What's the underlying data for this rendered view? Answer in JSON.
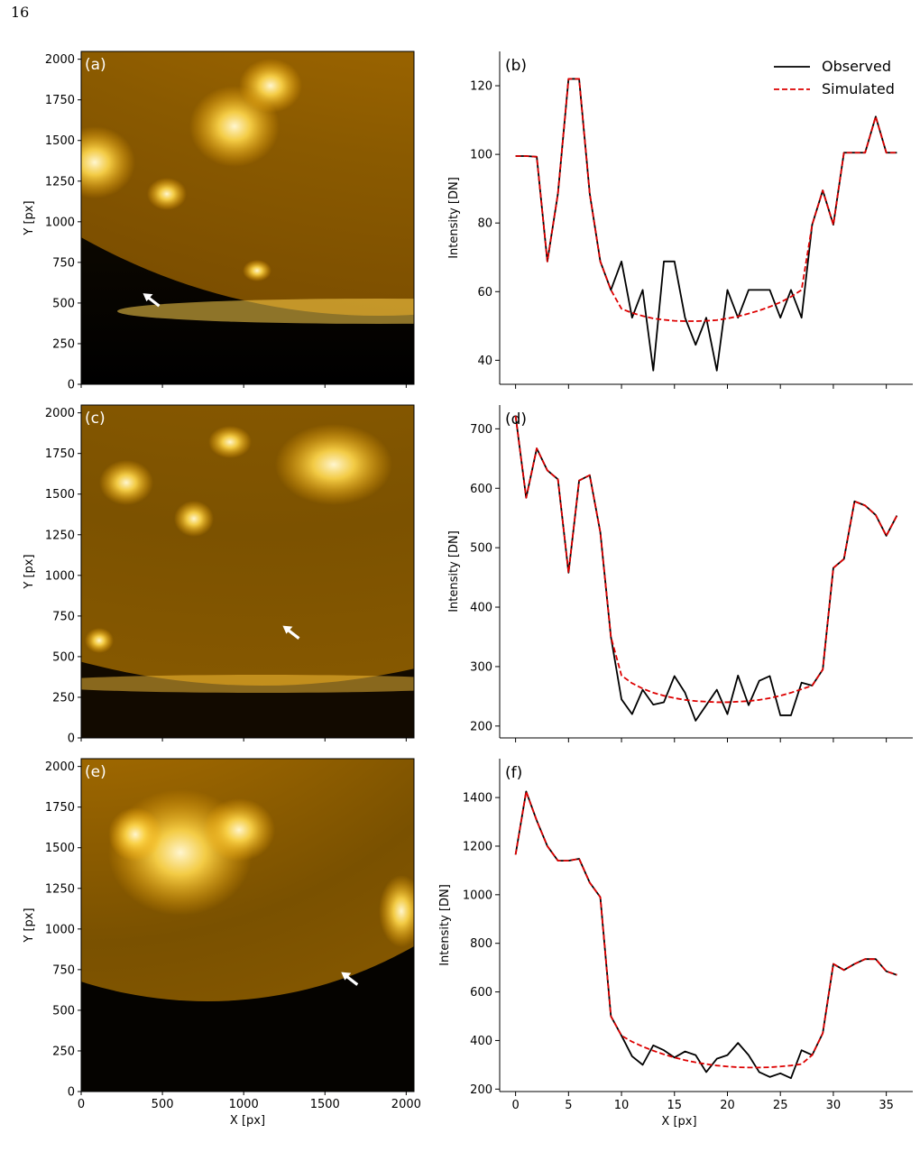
{
  "page_number": "16",
  "image_panels": [
    {
      "label": "(a)",
      "ylabel": "Y [px]",
      "xlabel": "",
      "ticks": [
        "0",
        "500",
        "1000",
        "1500",
        "2000"
      ],
      "arrow": [
        380,
        560
      ]
    },
    {
      "label": "(c)",
      "ylabel": "Y [px]",
      "xlabel": "",
      "ticks": [
        "0",
        "500",
        "1000",
        "1500",
        "2000"
      ],
      "arrow": [
        1240,
        690
      ]
    },
    {
      "label": "(e)",
      "ylabel": "Y [px]",
      "xlabel": "X [px]",
      "ticks": [
        "0",
        "500",
        "1000",
        "1500",
        "2000"
      ],
      "arrow": [
        1600,
        735
      ]
    }
  ],
  "colors": {
    "observed": "#000000",
    "simulated": "#dd0000",
    "sun_dark": "#3a2400",
    "sun_mid": "#b77a00",
    "sun_bright": "#ffcc33"
  },
  "chart_data": [
    {
      "type": "line",
      "label": "(b)",
      "xlabel": "",
      "ylabel": "Intensity [DN]",
      "xlim": [
        -1.5,
        37.5
      ],
      "ylim": [
        33,
        130
      ],
      "xticks": [
        0,
        5,
        10,
        15,
        20,
        25,
        30,
        35
      ],
      "yticks": [
        40,
        60,
        80,
        100,
        120
      ],
      "legend": "top-right",
      "x": [
        0,
        1,
        2,
        3,
        4,
        5,
        6,
        7,
        8,
        9,
        10,
        11,
        12,
        13,
        14,
        15,
        16,
        17,
        18,
        19,
        20,
        21,
        22,
        23,
        24,
        25,
        26,
        27,
        28,
        29,
        30,
        31,
        32,
        33,
        34,
        35,
        36
      ],
      "series": [
        {
          "name": "Observed",
          "style": "solid",
          "values": [
            99.5,
            99.5,
            99.3,
            68.8,
            88.6,
            122,
            122,
            88.6,
            68.8,
            60.5,
            68.8,
            52.4,
            60.5,
            37,
            68.8,
            68.8,
            52.4,
            44.5,
            52.4,
            37,
            60.5,
            52.4,
            60.5,
            60.5,
            60.5,
            52.4,
            60.5,
            52.4,
            79.5,
            89.5,
            79.5,
            100.5,
            100.5,
            100.5,
            111,
            100.5,
            100.5
          ]
        },
        {
          "name": "Simulated",
          "style": "dashed",
          "values": [
            99.5,
            99.5,
            99.3,
            68.8,
            88.6,
            122,
            122,
            88.6,
            68.8,
            60.5,
            55,
            53.8,
            52.9,
            52.2,
            51.8,
            51.5,
            51.4,
            51.4,
            51.5,
            51.7,
            52.2,
            52.8,
            53.6,
            54.5,
            55.6,
            56.9,
            58.5,
            60.5,
            79.5,
            89.5,
            79.5,
            100.5,
            100.5,
            100.5,
            111,
            100.5,
            100.5
          ]
        }
      ]
    },
    {
      "type": "line",
      "label": "(d)",
      "xlabel": "",
      "ylabel": "Intensity [DN]",
      "xlim": [
        -1.5,
        37.5
      ],
      "ylim": [
        180,
        740
      ],
      "xticks": [
        0,
        5,
        10,
        15,
        20,
        25,
        30,
        35
      ],
      "yticks": [
        200,
        300,
        400,
        500,
        600,
        700
      ],
      "legend": "none",
      "x": [
        0,
        1,
        2,
        3,
        4,
        5,
        6,
        7,
        8,
        9,
        10,
        11,
        12,
        13,
        14,
        15,
        16,
        17,
        18,
        19,
        20,
        21,
        22,
        23,
        24,
        25,
        26,
        27,
        28,
        29,
        30,
        31,
        32,
        33,
        34,
        35,
        36
      ],
      "series": [
        {
          "name": "Observed",
          "style": "solid",
          "values": [
            722,
            584,
            667,
            630,
            615,
            458,
            613,
            622,
            526,
            350,
            245,
            220,
            261,
            236,
            240,
            284,
            256,
            209,
            235,
            261,
            220,
            285,
            235,
            276,
            284,
            218,
            218,
            273,
            268,
            295,
            466,
            481,
            578,
            571,
            555,
            520,
            554
          ]
        },
        {
          "name": "Simulated",
          "style": "dashed",
          "values": [
            722,
            584,
            667,
            630,
            615,
            458,
            613,
            622,
            526,
            350,
            285,
            272,
            263,
            256,
            251,
            247,
            244,
            242,
            241,
            240,
            240,
            241,
            242,
            244,
            247,
            251,
            256,
            262,
            268,
            295,
            466,
            481,
            578,
            571,
            555,
            520,
            554
          ]
        }
      ]
    },
    {
      "type": "line",
      "label": "(f)",
      "xlabel": "X [px]",
      "ylabel": "Intensity [DN]",
      "xlim": [
        -1.5,
        37.5
      ],
      "ylim": [
        190,
        1560
      ],
      "xticks": [
        0,
        5,
        10,
        15,
        20,
        25,
        30,
        35
      ],
      "yticks": [
        200,
        400,
        600,
        800,
        1000,
        1200,
        1400
      ],
      "legend": "none",
      "x": [
        0,
        1,
        2,
        3,
        4,
        5,
        6,
        7,
        8,
        9,
        10,
        11,
        12,
        13,
        14,
        15,
        16,
        17,
        18,
        19,
        20,
        21,
        22,
        23,
        24,
        25,
        26,
        27,
        28,
        29,
        30,
        31,
        32,
        33,
        34,
        35,
        36
      ],
      "series": [
        {
          "name": "Observed",
          "style": "solid",
          "values": [
            1165,
            1425,
            1305,
            1200,
            1140,
            1140,
            1148,
            1050,
            990,
            500,
            420,
            335,
            300,
            380,
            360,
            330,
            355,
            340,
            270,
            325,
            340,
            390,
            340,
            270,
            250,
            265,
            245,
            360,
            340,
            430,
            715,
            690,
            715,
            735,
            735,
            685,
            670
          ]
        },
        {
          "name": "Simulated",
          "style": "dashed",
          "values": [
            1165,
            1425,
            1305,
            1200,
            1140,
            1140,
            1148,
            1050,
            990,
            500,
            420,
            395,
            375,
            358,
            343,
            330,
            319,
            310,
            303,
            297,
            293,
            290,
            289,
            289,
            290,
            293,
            297,
            303,
            340,
            430,
            715,
            690,
            715,
            735,
            735,
            685,
            670
          ]
        }
      ]
    }
  ]
}
